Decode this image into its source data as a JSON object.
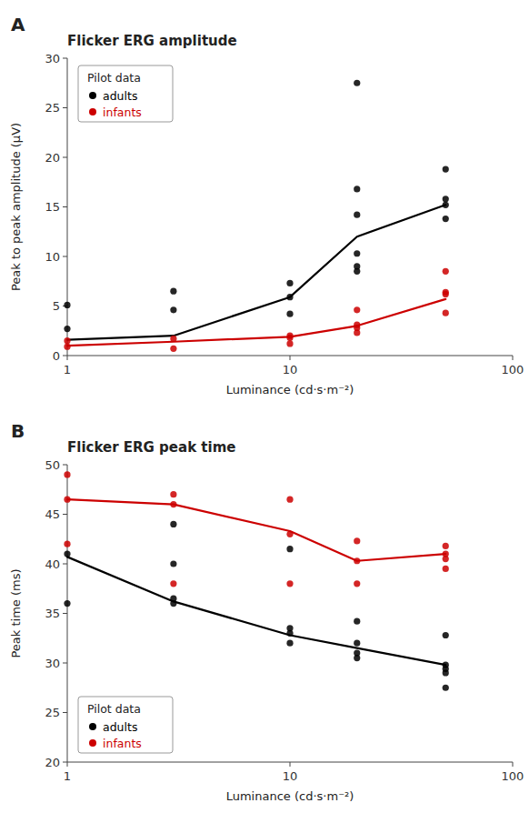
{
  "chart_data": [
    {
      "type": "scatter",
      "title": "Flicker ERG amplitude",
      "annotations": [
        "A"
      ],
      "x_label": "Luminance (cd·s·m⁻²)",
      "y_label": "Peak to peak amplitude (µV)",
      "log": "x",
      "xlim": [
        1,
        100
      ],
      "xticks": [
        1,
        10,
        100
      ],
      "ylim": [
        0,
        30
      ],
      "yticks": [
        0,
        5,
        10,
        15,
        20,
        25,
        30
      ],
      "grid": false,
      "legend": "upper left",
      "legend_title": "Pilot data",
      "series": [
        {
          "name": "adults",
          "type": "scatter",
          "color": "#000000",
          "x": [
            1,
            1,
            3,
            3,
            10,
            10,
            10,
            20,
            20,
            20,
            20,
            20,
            20,
            50,
            50,
            50,
            50
          ],
          "values": [
            5.1,
            2.7,
            6.5,
            4.6,
            7.3,
            5.9,
            4.2,
            27.5,
            16.8,
            14.2,
            10.3,
            9.0,
            8.5,
            18.8,
            15.8,
            15.2,
            13.8
          ]
        },
        {
          "name": "infants",
          "type": "scatter",
          "color": "#cc0000",
          "x": [
            1,
            1,
            3,
            3,
            10,
            10,
            10,
            20,
            20,
            20,
            20,
            50,
            50,
            50,
            50
          ],
          "values": [
            1.5,
            0.9,
            1.7,
            0.7,
            2.0,
            1.8,
            1.2,
            3.1,
            2.8,
            2.3,
            4.6,
            8.5,
            6.4,
            6.2,
            4.3
          ]
        },
        {
          "type": "line",
          "color": "#000000",
          "x": [
            1,
            3,
            10,
            20,
            50
          ],
          "values": [
            1.6,
            2.0,
            5.9,
            12.0,
            15.2
          ]
        },
        {
          "type": "line",
          "color": "#cc0000",
          "x": [
            1,
            3,
            10,
            20,
            50
          ],
          "values": [
            1.0,
            1.4,
            1.9,
            3.0,
            5.7
          ]
        }
      ]
    },
    {
      "type": "scatter",
      "title": "Flicker ERG peak time",
      "annotations": [
        "B"
      ],
      "x_label": "Luminance (cd·s·m⁻²)",
      "y_label": "Peak time (ms)",
      "log": "x",
      "xlim": [
        1,
        100
      ],
      "xticks": [
        1,
        10,
        100
      ],
      "ylim": [
        20,
        50
      ],
      "yticks": [
        20,
        25,
        30,
        35,
        40,
        45,
        50
      ],
      "grid": false,
      "legend": "lower left",
      "legend_title": "Pilot data",
      "series": [
        {
          "name": "adults",
          "type": "scatter",
          "color": "#000000",
          "x": [
            1,
            1,
            3,
            3,
            3,
            3,
            10,
            10,
            10,
            10,
            20,
            20,
            20,
            20,
            50,
            50,
            50,
            50,
            50
          ],
          "values": [
            41.0,
            36.0,
            44.0,
            40.0,
            36.5,
            36.0,
            41.5,
            33.5,
            33.0,
            32.0,
            34.2,
            32.0,
            31.0,
            30.5,
            32.8,
            29.8,
            29.4,
            29.0,
            27.5
          ]
        },
        {
          "name": "infants",
          "type": "scatter",
          "color": "#cc0000",
          "x": [
            1,
            1,
            1,
            3,
            3,
            3,
            10,
            10,
            10,
            20,
            20,
            20,
            50,
            50,
            50,
            50
          ],
          "values": [
            49.0,
            46.5,
            42.0,
            47.0,
            46.0,
            38.0,
            46.5,
            43.0,
            38.0,
            42.3,
            40.3,
            38.0,
            41.8,
            41.0,
            40.5,
            39.5
          ]
        },
        {
          "type": "line",
          "color": "#000000",
          "x": [
            1,
            3,
            10,
            20,
            50
          ],
          "values": [
            40.7,
            36.2,
            32.8,
            31.5,
            29.8
          ]
        },
        {
          "type": "line",
          "color": "#cc0000",
          "x": [
            1,
            3,
            10,
            20,
            50
          ],
          "values": [
            46.5,
            46.0,
            43.3,
            40.3,
            41.0
          ]
        }
      ]
    }
  ]
}
